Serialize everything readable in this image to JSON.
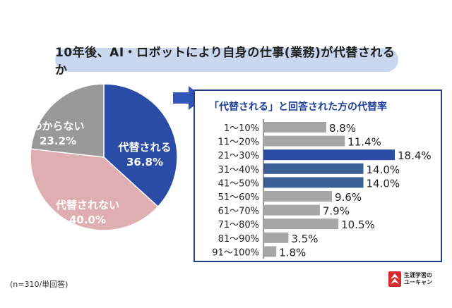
{
  "title": "10年後、AI・ロボットにより自身の仕事(業務)が代替されるか",
  "footnote": "(n=310/単回答)",
  "logo": {
    "line1": "生涯学習の",
    "line2": "ユーキャン"
  },
  "colors": {
    "banner_bg": "#c9d8ef",
    "pie_replaced": "#2a4ba6",
    "pie_not_replaced": "#dfaeb0",
    "pie_unknown": "#999999",
    "bar_gray": "#a6a6a6",
    "bar_blue": "#2a4ba6",
    "bar_navy": "#3c5f95",
    "panel_border": "#233c8a",
    "arrow": "#2f56b8",
    "logo_red": "#d82a2a"
  },
  "chart_data": [
    {
      "type": "pie",
      "labels": [
        "代替される",
        "代替されない",
        "わからない"
      ],
      "values": [
        36.8,
        40.0,
        23.2
      ],
      "value_labels": [
        "36.8%",
        "40.0%",
        "23.2%"
      ],
      "colors": [
        "#2a4ba6",
        "#dfaeb0",
        "#999999"
      ],
      "label_colors": [
        "#ffffff",
        "#ffffff",
        "#ffffff"
      ]
    },
    {
      "type": "bar",
      "orientation": "horizontal",
      "title": "「代替される」と回答された方の代替率",
      "categories": [
        "1～10%",
        "11～20%",
        "21～30%",
        "31～40%",
        "41～50%",
        "51～60%",
        "61～70%",
        "71～80%",
        "81～90%",
        "91～100%"
      ],
      "values": [
        8.8,
        11.4,
        18.4,
        14.0,
        14.0,
        9.6,
        7.9,
        10.5,
        3.5,
        1.8
      ],
      "value_labels": [
        "8.8%",
        "11.4%",
        "18.4%",
        "14.0%",
        "14.0%",
        "9.6%",
        "7.9%",
        "10.5%",
        "3.5%",
        "1.8%"
      ],
      "bar_colors": [
        "#a6a6a6",
        "#a6a6a6",
        "#2a4ba6",
        "#3c5f95",
        "#3c5f95",
        "#a6a6a6",
        "#a6a6a6",
        "#a6a6a6",
        "#a6a6a6",
        "#a6a6a6"
      ],
      "xlim": [
        0,
        18.4
      ]
    }
  ]
}
